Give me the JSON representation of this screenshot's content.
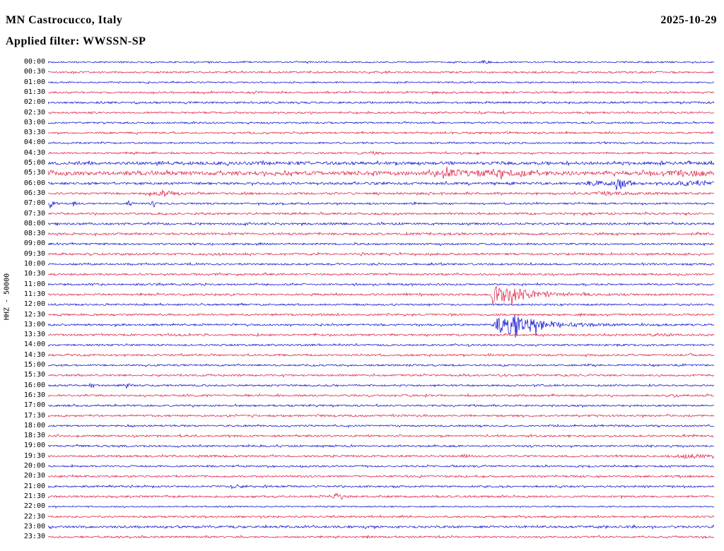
{
  "header": {
    "station": "MN Castrocucco, Italy",
    "date": "2025-10-29",
    "filter": "Applied filter: WWSSN-SP"
  },
  "y_axis_label": "HHZ - 50000",
  "colors": {
    "blue": "#0000cd",
    "red": "#dc143c"
  },
  "chart_data": {
    "type": "line",
    "subtype": "helicorder",
    "title": "MN Castrocucco, Italy",
    "date": "2025-10-29",
    "filter": "WWSSN-SP",
    "channel": "HHZ",
    "scale": 50000,
    "row_duration_minutes": 30,
    "first_row": "00:00",
    "last_row": "23:30",
    "legend": "alternating blue/red traces, one 30-minute line per row",
    "rows": [
      {
        "label": "00:00",
        "color": "blue",
        "noise": 1.0,
        "events": [
          {
            "x": 0.655,
            "a": 0.004,
            "d": 0.006,
            "amp": 2.0
          }
        ]
      },
      {
        "label": "00:30",
        "color": "red",
        "noise": 1.25,
        "events": []
      },
      {
        "label": "01:00",
        "color": "blue",
        "noise": 1.0,
        "events": []
      },
      {
        "label": "01:30",
        "color": "red",
        "noise": 1.2,
        "events": []
      },
      {
        "label": "02:00",
        "color": "blue",
        "noise": 1.3,
        "events": []
      },
      {
        "label": "02:30",
        "color": "red",
        "noise": 1.2,
        "events": []
      },
      {
        "label": "03:00",
        "color": "blue",
        "noise": 1.1,
        "events": []
      },
      {
        "label": "03:30",
        "color": "red",
        "noise": 1.2,
        "events": [
          {
            "x": 0.69,
            "a": 0.003,
            "d": 0.004,
            "amp": 1.8
          }
        ]
      },
      {
        "label": "04:00",
        "color": "blue",
        "noise": 1.1,
        "events": []
      },
      {
        "label": "04:30",
        "color": "red",
        "noise": 1.2,
        "events": [
          {
            "x": 0.488,
            "a": 0.004,
            "d": 0.005,
            "amp": 2.2
          }
        ]
      },
      {
        "label": "05:00",
        "color": "blue",
        "noise": 2.0,
        "events": []
      },
      {
        "label": "05:30",
        "color": "red",
        "noise": 2.6,
        "events": [
          {
            "x": 0.607,
            "a": 0.02,
            "d": 0.035,
            "amp": 3.2
          },
          {
            "x": 0.671,
            "a": 0.015,
            "d": 0.03,
            "amp": 2.8
          },
          {
            "x": 0.96,
            "a": 0.025,
            "d": 0.03,
            "amp": 2.6
          }
        ]
      },
      {
        "label": "06:00",
        "color": "blue",
        "noise": 1.6,
        "events": [
          {
            "x": 0.824,
            "a": 0.02,
            "d": 0.02,
            "amp": 2.2
          },
          {
            "x": 0.857,
            "a": 0.008,
            "d": 0.02,
            "amp": 4.2
          },
          {
            "x": 0.955,
            "a": 0.02,
            "d": 0.03,
            "amp": 2.4
          }
        ]
      },
      {
        "label": "06:30",
        "color": "red",
        "noise": 1.4,
        "events": [
          {
            "x": 0.174,
            "a": 0.008,
            "d": 0.014,
            "amp": 4.2
          },
          {
            "x": 0.148,
            "a": 0.006,
            "d": 0.008,
            "amp": 2.0
          },
          {
            "x": 0.84,
            "a": 0.03,
            "d": 0.04,
            "amp": 1.6
          }
        ]
      },
      {
        "label": "07:00",
        "color": "blue",
        "noise": 1.2,
        "events": [
          {
            "x": 0.004,
            "a": 0.002,
            "d": 0.003,
            "amp": 6.0
          },
          {
            "x": 0.039,
            "a": 0.002,
            "d": 0.003,
            "amp": 3.5
          },
          {
            "x": 0.121,
            "a": 0.003,
            "d": 0.004,
            "amp": 4.5
          },
          {
            "x": 0.156,
            "a": 0.002,
            "d": 0.003,
            "amp": 4.5
          }
        ]
      },
      {
        "label": "07:30",
        "color": "red",
        "noise": 1.35,
        "events": []
      },
      {
        "label": "08:00",
        "color": "blue",
        "noise": 1.45,
        "events": []
      },
      {
        "label": "08:30",
        "color": "red",
        "noise": 1.5,
        "events": []
      },
      {
        "label": "09:00",
        "color": "blue",
        "noise": 1.3,
        "events": []
      },
      {
        "label": "09:30",
        "color": "red",
        "noise": 1.4,
        "events": []
      },
      {
        "label": "10:00",
        "color": "blue",
        "noise": 1.25,
        "events": []
      },
      {
        "label": "10:30",
        "color": "red",
        "noise": 1.35,
        "events": []
      },
      {
        "label": "11:00",
        "color": "blue",
        "noise": 1.2,
        "events": []
      },
      {
        "label": "11:30",
        "color": "red",
        "noise": 1.35,
        "events": [
          {
            "x": 0.672,
            "a": 0.006,
            "d": 0.04,
            "amp": 11
          },
          {
            "x": 0.695,
            "a": 0.01,
            "d": 0.025,
            "amp": 5
          }
        ]
      },
      {
        "label": "12:00",
        "color": "blue",
        "noise": 1.25,
        "events": []
      },
      {
        "label": "12:30",
        "color": "red",
        "noise": 1.3,
        "events": []
      },
      {
        "label": "13:00",
        "color": "blue",
        "noise": 1.3,
        "events": [
          {
            "x": 0.676,
            "a": 0.005,
            "d": 0.05,
            "amp": 15
          },
          {
            "x": 0.705,
            "a": 0.012,
            "d": 0.03,
            "amp": 7
          }
        ]
      },
      {
        "label": "13:30",
        "color": "red",
        "noise": 1.3,
        "events": [
          {
            "x": 0.915,
            "a": 0.012,
            "d": 0.015,
            "amp": 1.8
          }
        ]
      },
      {
        "label": "14:00",
        "color": "blue",
        "noise": 1.2,
        "events": []
      },
      {
        "label": "14:30",
        "color": "red",
        "noise": 1.3,
        "events": []
      },
      {
        "label": "15:00",
        "color": "blue",
        "noise": 1.2,
        "events": []
      },
      {
        "label": "15:30",
        "color": "red",
        "noise": 1.3,
        "events": []
      },
      {
        "label": "16:00",
        "color": "blue",
        "noise": 1.2,
        "events": [
          {
            "x": 0.066,
            "a": 0.005,
            "d": 0.006,
            "amp": 2.2
          },
          {
            "x": 0.119,
            "a": 0.005,
            "d": 0.006,
            "amp": 2.4
          }
        ]
      },
      {
        "label": "16:30",
        "color": "red",
        "noise": 1.3,
        "events": []
      },
      {
        "label": "17:00",
        "color": "blue",
        "noise": 1.25,
        "events": []
      },
      {
        "label": "17:30",
        "color": "red",
        "noise": 1.3,
        "events": []
      },
      {
        "label": "18:00",
        "color": "blue",
        "noise": 1.2,
        "events": []
      },
      {
        "label": "18:30",
        "color": "red",
        "noise": 1.3,
        "events": []
      },
      {
        "label": "19:00",
        "color": "blue",
        "noise": 1.2,
        "events": []
      },
      {
        "label": "19:30",
        "color": "red",
        "noise": 1.3,
        "events": [
          {
            "x": 0.628,
            "a": 0.004,
            "d": 0.005,
            "amp": 2.0
          },
          {
            "x": 0.963,
            "a": 0.02,
            "d": 0.025,
            "amp": 2.4
          }
        ]
      },
      {
        "label": "20:00",
        "color": "blue",
        "noise": 1.2,
        "events": []
      },
      {
        "label": "20:30",
        "color": "red",
        "noise": 1.3,
        "events": []
      },
      {
        "label": "21:00",
        "color": "blue",
        "noise": 1.2,
        "events": [
          {
            "x": 0.283,
            "a": 0.006,
            "d": 0.009,
            "amp": 2.2
          }
        ]
      },
      {
        "label": "21:30",
        "color": "red",
        "noise": 1.3,
        "events": [
          {
            "x": 0.432,
            "a": 0.003,
            "d": 0.005,
            "amp": 5.5
          }
        ]
      },
      {
        "label": "22:00",
        "color": "blue",
        "noise": 0.9,
        "events": []
      },
      {
        "label": "22:30",
        "color": "red",
        "noise": 1.25,
        "events": []
      },
      {
        "label": "23:00",
        "color": "blue",
        "noise": 1.5,
        "events": []
      },
      {
        "label": "23:30",
        "color": "red",
        "noise": 1.25,
        "events": []
      }
    ]
  }
}
